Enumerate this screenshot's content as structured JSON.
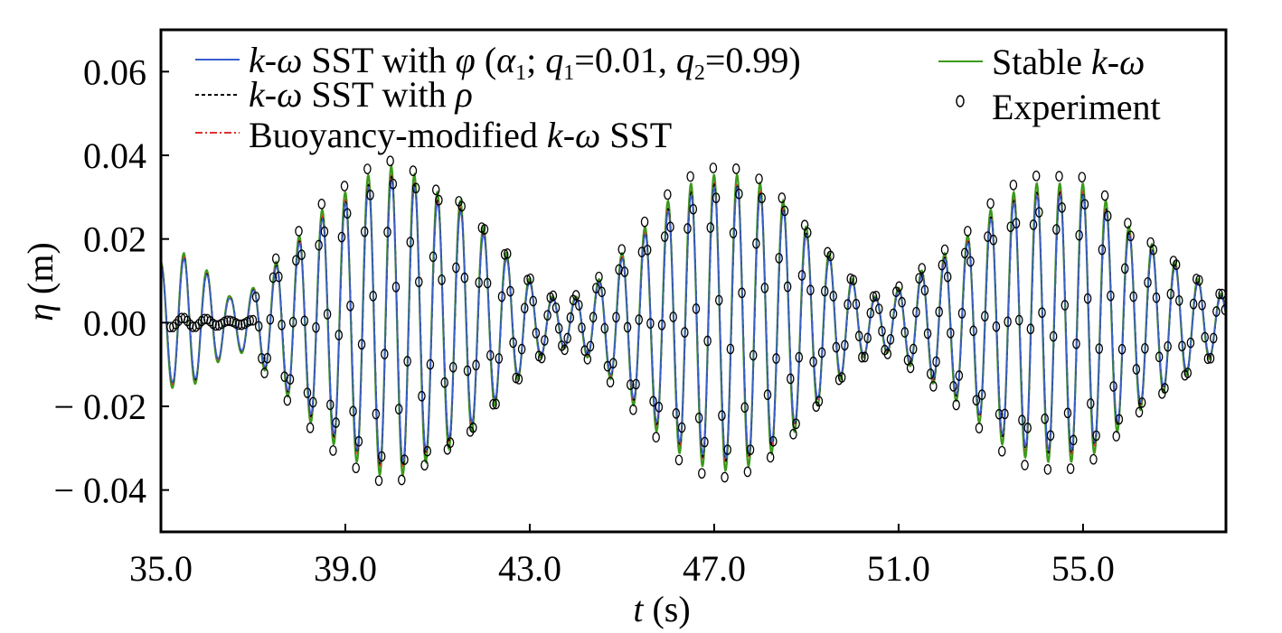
{
  "chart_data": {
    "type": "line",
    "title": "",
    "xlabel": "t (s)",
    "ylabel": "η (m)",
    "xlim": [
      35.0,
      58.1
    ],
    "ylim": [
      -0.05,
      0.07
    ],
    "x_ticks": [
      35.0,
      39.0,
      43.0,
      47.0,
      51.0,
      55.0
    ],
    "x_tick_labels": [
      "35.0",
      "39.0",
      "43.0",
      "47.0",
      "51.0",
      "55.0"
    ],
    "y_ticks": [
      0.06,
      0.04,
      0.02,
      0.0,
      -0.02,
      -0.04
    ],
    "y_tick_labels": [
      "0.06",
      "0.04",
      "0.02",
      "0.00",
      "− 0.02",
      "− 0.04"
    ],
    "grid": false,
    "legend_placement": "top",
    "series": [
      {
        "name": "k-ω SST with φ(α1; q1=0.01, q2=0.99)",
        "color": "#3a5fcd",
        "style": "solid"
      },
      {
        "name": "k-ω SST with ρ",
        "color": "#000000",
        "style": "dashed"
      },
      {
        "name": "Buoyancy-modified k-ω SST",
        "color": "#e03030",
        "style": "dashdot"
      },
      {
        "name": "Stable k-ω",
        "color": "#3a9a1a",
        "style": "solid"
      },
      {
        "name": "Experiment",
        "color": "#000000",
        "style": "markers"
      }
    ],
    "envelope": {
      "t": [
        35.0,
        35.5,
        36.0,
        36.5,
        37.0,
        37.5,
        38.0,
        38.5,
        39.0,
        39.5,
        40.0,
        40.5,
        41.0,
        41.5,
        42.0,
        42.5,
        43.0,
        43.5,
        44.0,
        44.5,
        45.0,
        45.5,
        46.0,
        46.5,
        47.0,
        47.5,
        48.0,
        48.5,
        49.0,
        49.5,
        50.0,
        50.5,
        51.0,
        51.5,
        52.0,
        52.5,
        53.0,
        53.5,
        54.0,
        54.5,
        55.0,
        55.5,
        56.0,
        56.5,
        57.0,
        57.5,
        58.1
      ],
      "amplitude": [
        0.014,
        0.016,
        0.012,
        0.006,
        0.008,
        0.014,
        0.02,
        0.026,
        0.03,
        0.034,
        0.036,
        0.034,
        0.03,
        0.028,
        0.022,
        0.016,
        0.01,
        0.006,
        0.006,
        0.01,
        0.016,
        0.022,
        0.028,
        0.032,
        0.034,
        0.034,
        0.032,
        0.028,
        0.022,
        0.016,
        0.01,
        0.006,
        0.008,
        0.012,
        0.016,
        0.02,
        0.026,
        0.03,
        0.032,
        0.032,
        0.032,
        0.028,
        0.022,
        0.018,
        0.014,
        0.01,
        0.006
      ]
    },
    "wave_period_s": 0.5,
    "experiment_start_s": 35.2,
    "experiment_sampling_s": 0.062
  },
  "legend": {
    "items": [
      {
        "pre": "k-ω SST with φ (α",
        "sub1": "1",
        "mid": "; q",
        "sub2": "1",
        "mid2": "=0.01, q",
        "sub3": "2",
        "post": "=0.99)"
      },
      {
        "text": "k-ω SST with ρ"
      },
      {
        "text": "Buoyancy-modified k-ω SST"
      },
      {
        "text": "Stable k-ω"
      },
      {
        "text": "Experiment"
      }
    ]
  }
}
